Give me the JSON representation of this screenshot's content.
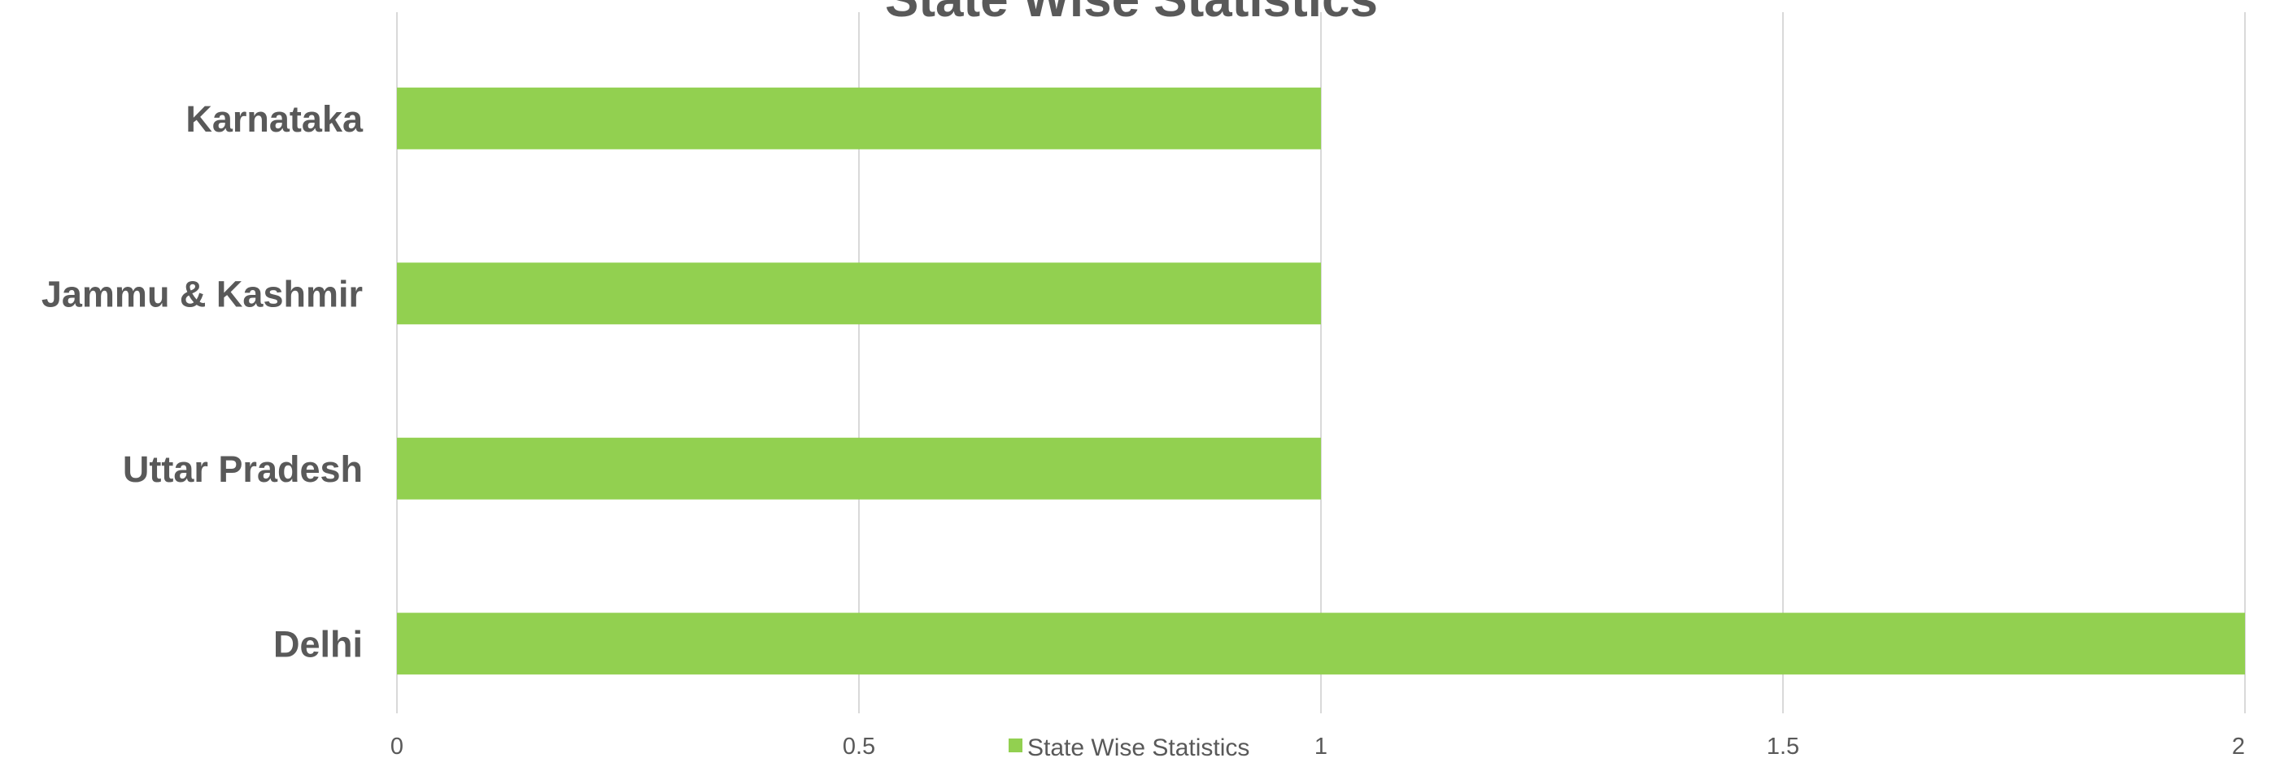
{
  "colors": {
    "bar": "#92d050",
    "grid": "#d9d9d9",
    "text": "#595959"
  },
  "chart_data": {
    "type": "bar",
    "orientation": "horizontal",
    "title": "State Wise Statistics",
    "categories": [
      "Karnataka",
      "Jammu & Kashmir",
      "Uttar Pradesh",
      "Delhi"
    ],
    "series": [
      {
        "name": "State Wise Statistics",
        "values": [
          1,
          1,
          1,
          2
        ]
      }
    ],
    "xlim": [
      0,
      2
    ],
    "xticks": [
      0,
      0.5,
      1,
      1.5,
      2
    ],
    "xtick_labels": [
      "0",
      "0.5",
      "1",
      "1.5",
      "2"
    ],
    "grid": true,
    "legend": "bottom"
  }
}
